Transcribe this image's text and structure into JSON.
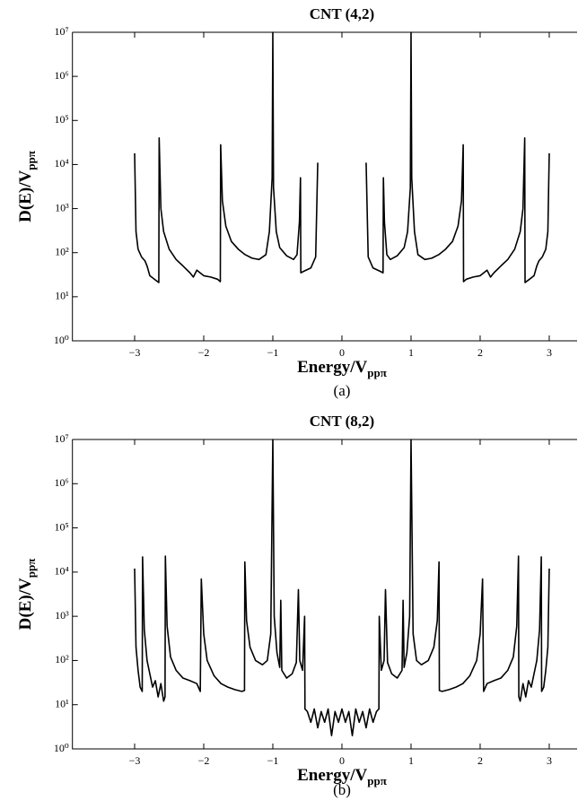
{
  "chart_data": [
    {
      "type": "line",
      "title": "CNT (4,2)",
      "caption": "(a)",
      "xlabel": "Energy/V",
      "xlabel_sub": "ppπ",
      "ylabel": "D(E)/V",
      "ylabel_sub": "ppπ",
      "log_y": true,
      "color": "#000000",
      "xlim": [
        -3.9,
        3.42
      ],
      "ylim": [
        1,
        10000000
      ],
      "xticks": [
        {
          "value": -3,
          "label": "−3"
        },
        {
          "value": -2,
          "label": "−2"
        },
        {
          "value": -1,
          "label": "−1"
        },
        0,
        1,
        2,
        3
      ],
      "yticks": [
        {
          "value": 1,
          "label": "10⁰"
        },
        {
          "value": 10,
          "label": "10¹"
        },
        {
          "value": 100,
          "label": "10²"
        },
        {
          "value": 1000,
          "label": "10³"
        },
        {
          "value": 10000,
          "label": "10⁴"
        },
        {
          "value": 100000,
          "label": "10⁵"
        },
        {
          "value": 1000000,
          "label": "10⁶"
        },
        {
          "value": 10000000,
          "label": "10⁷"
        }
      ],
      "x": [
        -3.0,
        -2.98,
        -2.95,
        -2.9,
        -2.85,
        -2.82,
        -2.78,
        -2.7,
        -2.65,
        -2.645,
        -2.62,
        -2.58,
        -2.5,
        -2.4,
        -2.3,
        -2.2,
        -2.15,
        -2.1,
        -2.0,
        -1.9,
        -1.8,
        -1.76,
        -1.755,
        -1.73,
        -1.68,
        -1.6,
        -1.5,
        -1.4,
        -1.3,
        -1.2,
        -1.1,
        -1.05,
        -1.01,
        -1.0,
        -0.99,
        -0.95,
        -0.9,
        -0.8,
        -0.7,
        -0.65,
        -0.615,
        -0.6,
        -0.595,
        -0.55,
        -0.45,
        -0.38,
        -0.35,
        0,
        0.35,
        0.38,
        0.45,
        0.55,
        0.595,
        0.6,
        0.615,
        0.65,
        0.7,
        0.8,
        0.9,
        0.95,
        0.99,
        1.0,
        1.01,
        1.05,
        1.1,
        1.2,
        1.3,
        1.4,
        1.5,
        1.6,
        1.68,
        1.73,
        1.755,
        1.76,
        1.8,
        1.9,
        2.0,
        2.1,
        2.15,
        2.2,
        2.3,
        2.4,
        2.5,
        2.58,
        2.62,
        2.645,
        2.65,
        2.7,
        2.78,
        2.82,
        2.85,
        2.9,
        2.95,
        2.98,
        3.0
      ],
      "values": [
        18000,
        300,
        120,
        80,
        65,
        50,
        30,
        24,
        21,
        40000,
        1000,
        300,
        120,
        70,
        50,
        35,
        28,
        40,
        30,
        28,
        25,
        22,
        28000,
        1500,
        400,
        180,
        120,
        90,
        75,
        70,
        90,
        300,
        5000,
        10000000,
        3000,
        300,
        130,
        85,
        70,
        90,
        500,
        5000,
        35,
        38,
        45,
        80,
        11000,
        null,
        11000,
        80,
        45,
        38,
        35,
        5000,
        500,
        90,
        70,
        85,
        130,
        300,
        3000,
        10000000,
        5000,
        300,
        90,
        70,
        75,
        90,
        120,
        180,
        400,
        1500,
        28000,
        22,
        25,
        28,
        30,
        40,
        28,
        35,
        50,
        70,
        120,
        300,
        1000,
        40000,
        21,
        24,
        30,
        50,
        65,
        80,
        120,
        300,
        18000
      ]
    },
    {
      "type": "line",
      "title": "CNT (8,2)",
      "caption": "(b)",
      "xlabel": "Energy/V",
      "xlabel_sub": "ppπ",
      "ylabel": "D(E)/V",
      "ylabel_sub": "ppπ",
      "log_y": true,
      "color": "#000000",
      "xlim": [
        -3.9,
        3.42
      ],
      "ylim": [
        1,
        10000000
      ],
      "xticks": [
        {
          "value": -3,
          "label": "−3"
        },
        {
          "value": -2,
          "label": "−2"
        },
        {
          "value": -1,
          "label": "−1"
        },
        0,
        1,
        2,
        3
      ],
      "yticks": [
        {
          "value": 1,
          "label": "10⁰"
        },
        {
          "value": 10,
          "label": "10¹"
        },
        {
          "value": 100,
          "label": "10²"
        },
        {
          "value": 1000,
          "label": "10³"
        },
        {
          "value": 10000,
          "label": "10⁴"
        },
        {
          "value": 100000,
          "label": "10⁵"
        },
        {
          "value": 1000000,
          "label": "10⁶"
        },
        {
          "value": 10000000,
          "label": "10⁷"
        }
      ],
      "x": [
        -3.0,
        -2.98,
        -2.95,
        -2.92,
        -2.89,
        -2.885,
        -2.86,
        -2.82,
        -2.78,
        -2.74,
        -2.7,
        -2.66,
        -2.62,
        -2.58,
        -2.56,
        -2.555,
        -2.53,
        -2.48,
        -2.4,
        -2.3,
        -2.2,
        -2.1,
        -2.05,
        -2.035,
        -2.0,
        -1.95,
        -1.85,
        -1.75,
        -1.65,
        -1.55,
        -1.45,
        -1.41,
        -1.405,
        -1.38,
        -1.33,
        -1.25,
        -1.15,
        -1.08,
        -1.03,
        -1.0,
        -0.98,
        -0.94,
        -0.9,
        -0.885,
        -0.87,
        -0.8,
        -0.72,
        -0.66,
        -0.63,
        -0.61,
        -0.57,
        -0.54,
        -0.535,
        -0.5,
        -0.45,
        -0.4,
        -0.35,
        -0.3,
        -0.25,
        -0.2,
        -0.15,
        -0.1,
        -0.05,
        0,
        0.05,
        0.1,
        0.15,
        0.2,
        0.25,
        0.3,
        0.35,
        0.4,
        0.45,
        0.5,
        0.535,
        0.54,
        0.57,
        0.61,
        0.63,
        0.66,
        0.72,
        0.8,
        0.87,
        0.885,
        0.9,
        0.94,
        0.98,
        1.0,
        1.03,
        1.08,
        1.15,
        1.25,
        1.33,
        1.38,
        1.405,
        1.41,
        1.45,
        1.55,
        1.65,
        1.75,
        1.85,
        1.95,
        2.0,
        2.035,
        2.05,
        2.1,
        2.2,
        2.3,
        2.4,
        2.48,
        2.53,
        2.555,
        2.56,
        2.58,
        2.62,
        2.66,
        2.7,
        2.74,
        2.78,
        2.82,
        2.86,
        2.885,
        2.89,
        2.92,
        2.95,
        2.98,
        3.0
      ],
      "values": [
        12000,
        200,
        60,
        25,
        20,
        22000,
        500,
        100,
        50,
        25,
        35,
        15,
        30,
        12,
        15,
        23000,
        600,
        120,
        60,
        40,
        35,
        30,
        20,
        7000,
        400,
        100,
        45,
        30,
        25,
        22,
        20,
        21,
        17000,
        800,
        200,
        100,
        80,
        100,
        400,
        10000000,
        1000,
        150,
        70,
        2300,
        60,
        40,
        50,
        90,
        4000,
        100,
        60,
        1000,
        8,
        7,
        4,
        8,
        3,
        7,
        4,
        8,
        2,
        7,
        4,
        8,
        4,
        7,
        2,
        8,
        4,
        7,
        3,
        8,
        4,
        7,
        8,
        1000,
        60,
        100,
        4000,
        90,
        50,
        40,
        60,
        2300,
        70,
        150,
        1000,
        10000000,
        400,
        100,
        80,
        100,
        200,
        800,
        17000,
        21,
        20,
        22,
        25,
        30,
        45,
        100,
        400,
        7000,
        20,
        30,
        35,
        40,
        60,
        120,
        600,
        23000,
        15,
        12,
        30,
        15,
        35,
        25,
        50,
        100,
        500,
        22000,
        20,
        25,
        60,
        200,
        12000
      ]
    }
  ]
}
